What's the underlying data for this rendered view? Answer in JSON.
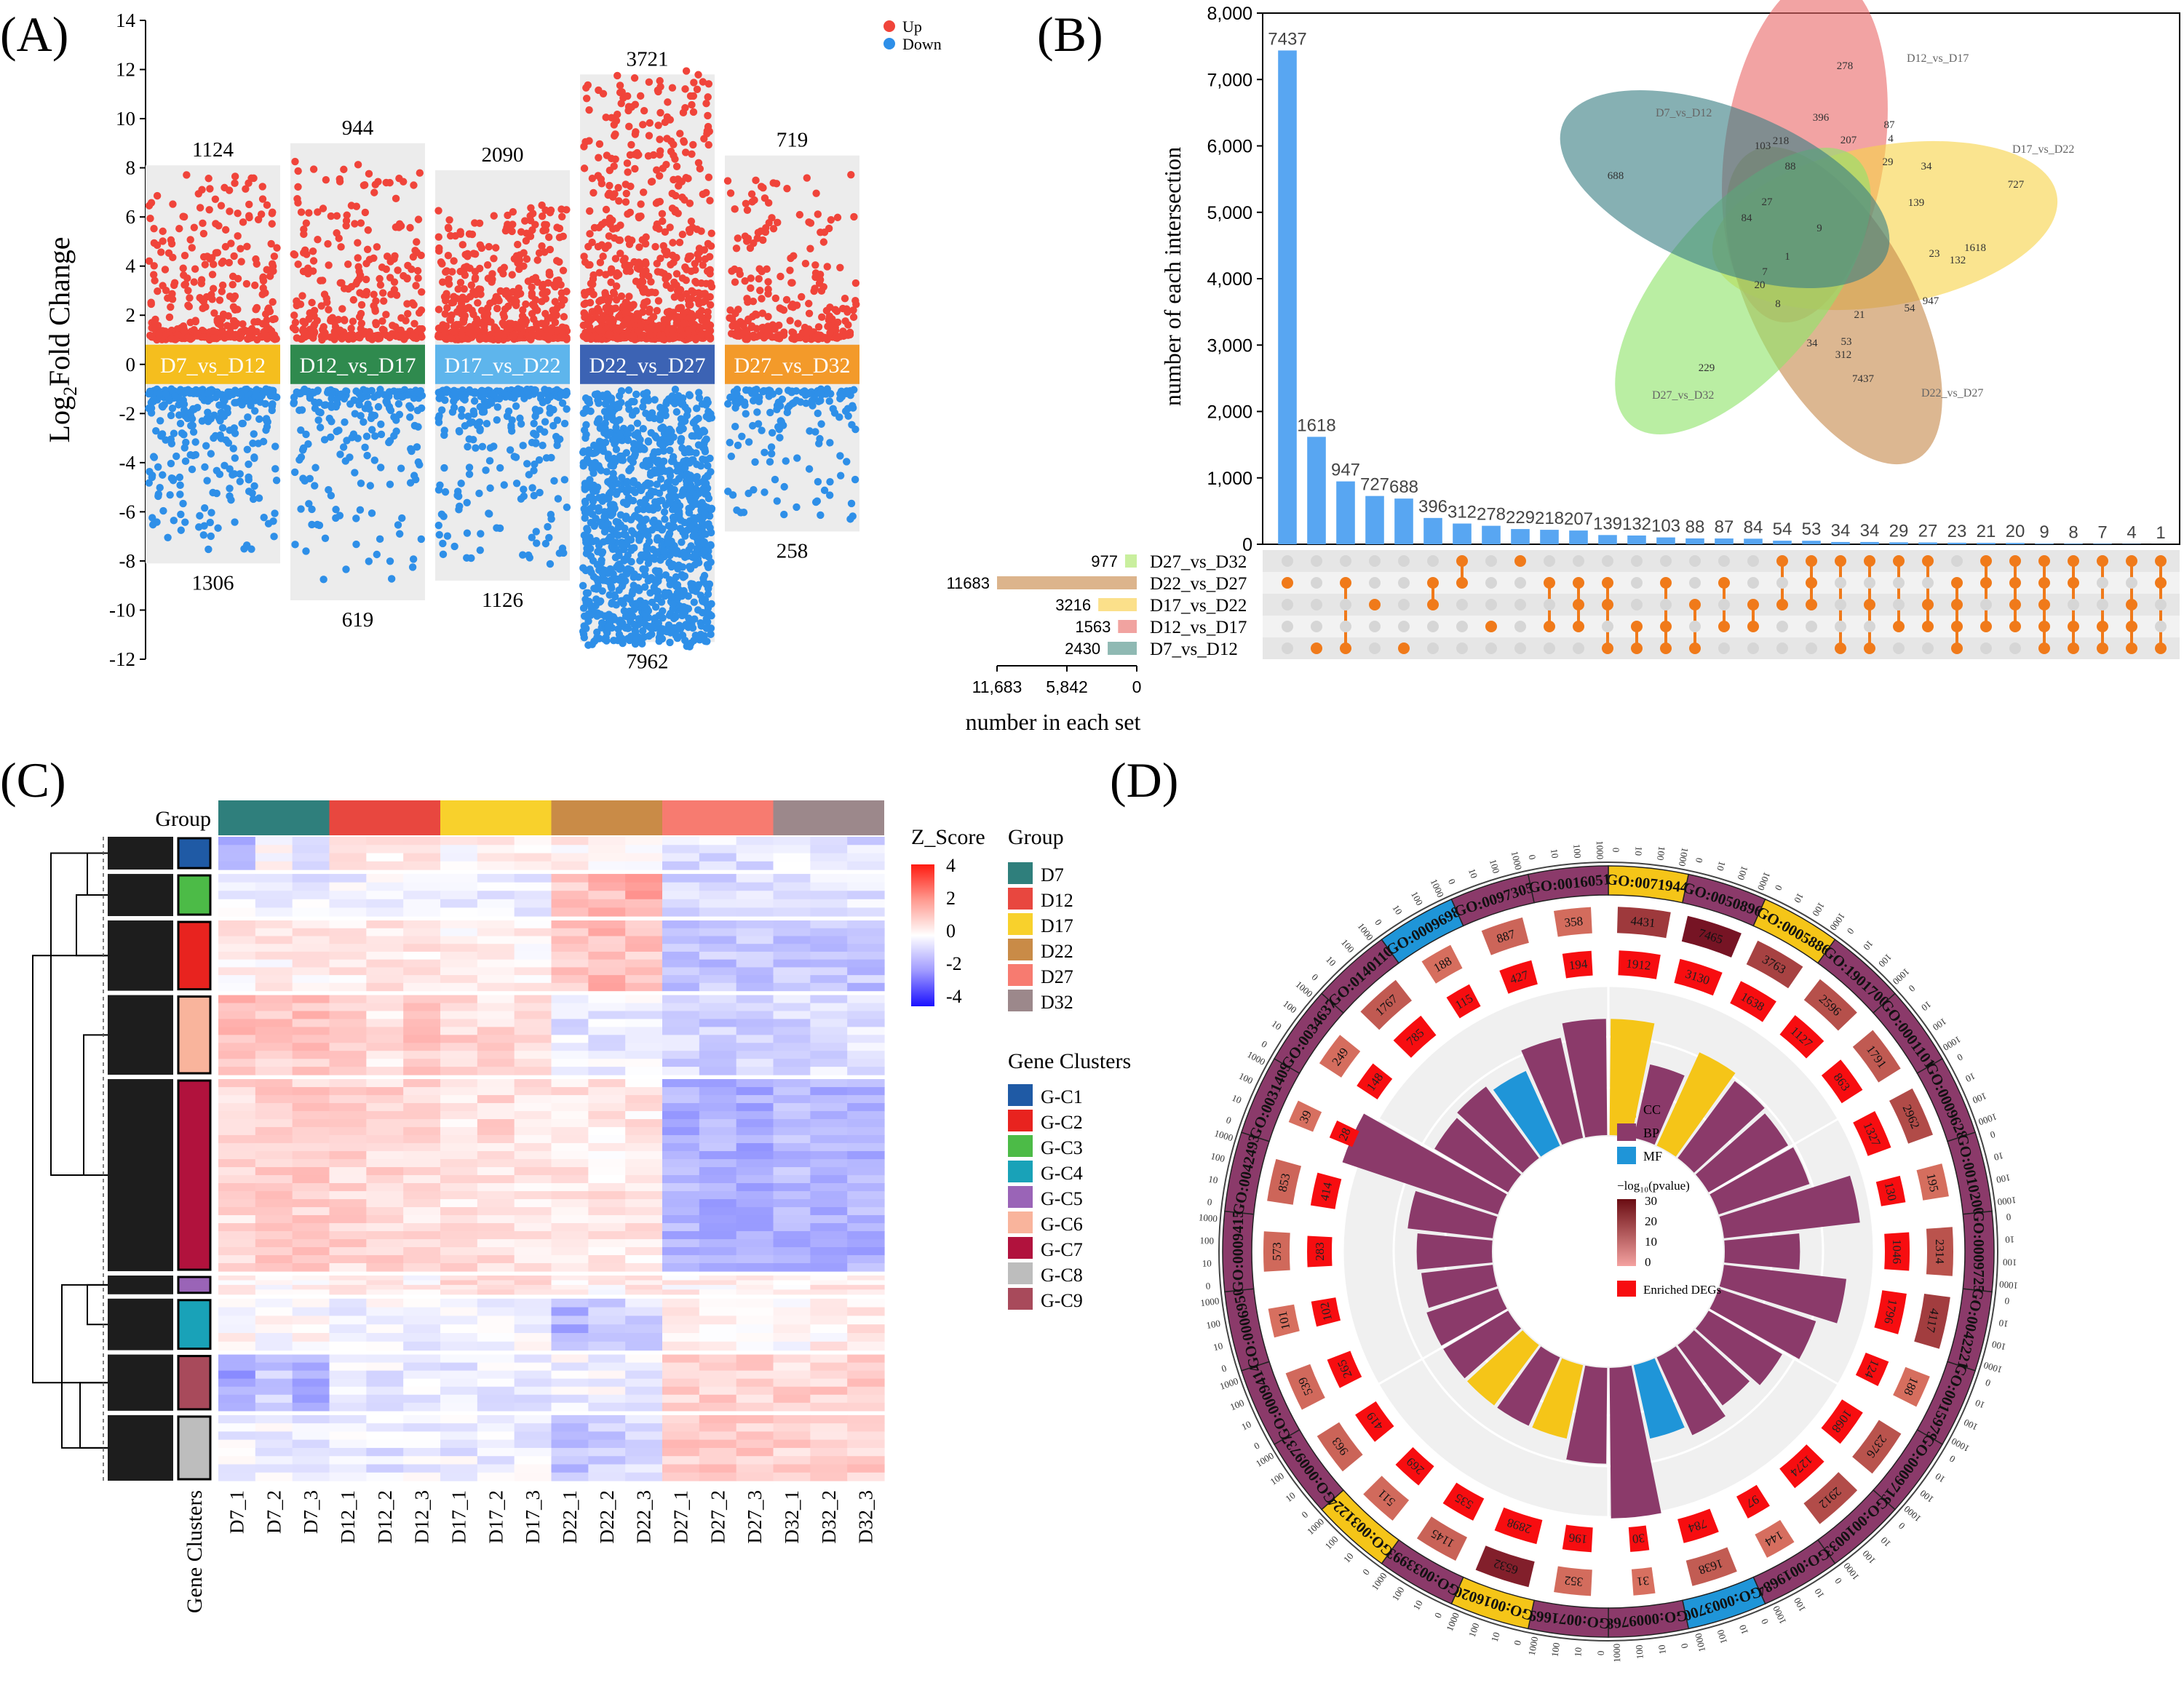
{
  "panels": {
    "A": "(A)",
    "B": "(B)",
    "C": "(C)",
    "D": "(D)"
  },
  "colors": {
    "up": "#f0443a",
    "down": "#2e8fe8",
    "bar": "#58a6f2",
    "dot_on": "#f07a1a",
    "dot_off": "#d6d6d6",
    "cc": "#f5c518",
    "bp": "#8b3a6a",
    "mf": "#1f95d8"
  },
  "chart_data": [
    {
      "id": "A",
      "type": "scatter",
      "title": "",
      "ylabel_prefix": "Log",
      "ylabel_sub": "2",
      "ylabel_suffix": "Fold Change",
      "ylim": [
        -12,
        14
      ],
      "yticks": [
        14,
        12,
        10,
        8,
        6,
        4,
        2,
        0,
        -2,
        -4,
        -6,
        -8,
        -10,
        -12
      ],
      "legend": [
        {
          "label": "Up",
          "color": "#f0443a"
        },
        {
          "label": "Down",
          "color": "#2e8fe8"
        }
      ],
      "series": [
        {
          "name": "D7_vs_D12",
          "label_color": "#f5be1e",
          "up": 1124,
          "down": 1306,
          "max": 8.1,
          "min": -8.1,
          "up_range": [
            1,
            7.6
          ],
          "down_range": [
            -1,
            -7.5
          ]
        },
        {
          "name": "D12_vs_D17",
          "label_color": "#2f8a4e",
          "up": 944,
          "down": 619,
          "max": 9.0,
          "min": -9.6,
          "up_range": [
            1,
            8.2
          ],
          "down_range": [
            -1,
            -8.8
          ]
        },
        {
          "name": "D17_vs_D22",
          "label_color": "#5eb5ec",
          "up": 2090,
          "down": 1126,
          "max": 7.9,
          "min": -8.8,
          "up_range": [
            1,
            6.3
          ],
          "down_range": [
            -1,
            -8.0
          ]
        },
        {
          "name": "D22_vs_D27",
          "label_color": "#3c63b4",
          "up": 3721,
          "down": 7962,
          "max": 11.8,
          "min": -11.3,
          "up_range": [
            1,
            11.8
          ],
          "down_range": [
            -1,
            -11.3
          ]
        },
        {
          "name": "D27_vs_D32",
          "label_color": "#f39a2a",
          "up": 719,
          "down": 258,
          "max": 8.5,
          "min": -6.8,
          "up_range": [
            1,
            7.8
          ],
          "down_range": [
            -1,
            -6.2
          ]
        }
      ]
    },
    {
      "id": "B",
      "type": "bar",
      "subtype": "upset",
      "ylabel": "number of each intersection",
      "xlabel": "number in each set",
      "ylim": [
        0,
        8000
      ],
      "yticks": [
        0,
        1000,
        2000,
        3000,
        4000,
        5000,
        6000,
        7000,
        8000
      ],
      "ytick_labels": [
        "0",
        "1,000",
        "2,000",
        "3,000",
        "4,000",
        "5,000",
        "6,000",
        "7,000",
        "8,000"
      ],
      "values": [
        7437,
        1618,
        947,
        727,
        688,
        396,
        312,
        278,
        229,
        218,
        207,
        139,
        132,
        103,
        88,
        87,
        84,
        54,
        53,
        34,
        34,
        29,
        27,
        23,
        21,
        20,
        9,
        8,
        7,
        4,
        1
      ],
      "set_order": [
        "D27_vs_D32",
        "D22_vs_D27",
        "D17_vs_D22",
        "D12_vs_D17",
        "D7_vs_D12"
      ],
      "membership": [
        [
          1
        ],
        [
          4
        ],
        [
          1,
          4
        ],
        [
          2
        ],
        [
          4
        ],
        [
          1,
          2
        ],
        [
          0,
          1
        ],
        [
          3
        ],
        [
          0
        ],
        [
          1,
          3
        ],
        [
          1,
          2,
          3
        ],
        [
          1,
          2,
          4
        ],
        [
          3,
          4
        ],
        [
          1,
          3,
          4
        ],
        [
          2,
          4
        ],
        [
          1,
          3
        ],
        [
          2,
          3
        ],
        [
          0,
          2
        ],
        [
          0,
          1,
          2
        ],
        [
          0,
          4
        ],
        [
          0,
          2,
          4
        ],
        [
          0,
          3
        ],
        [
          0,
          2,
          3
        ],
        [
          1,
          2,
          3,
          4
        ],
        [
          0,
          1,
          3
        ],
        [
          0,
          1,
          2,
          3
        ],
        [
          0,
          1,
          2,
          3,
          4
        ],
        [
          0,
          1,
          3,
          4
        ],
        [
          0,
          3,
          4
        ],
        [
          0,
          2,
          3,
          4
        ],
        [
          0,
          1,
          4
        ]
      ],
      "set_sizes": [
        {
          "name": "D27_vs_D32",
          "value": 977,
          "color": "#c9ef9e"
        },
        {
          "name": "D22_vs_D27",
          "value": 11683,
          "color": "#dcb48c"
        },
        {
          "name": "D17_vs_D22",
          "value": 3216,
          "color": "#fbe08a"
        },
        {
          "name": "D12_vs_D17",
          "value": 1563,
          "color": "#f1a3a0"
        },
        {
          "name": "D7_vs_D12",
          "value": 2430,
          "color": "#8fb9b3"
        }
      ],
      "set_axis_ticks": [
        "11,683",
        "5,842",
        "0"
      ],
      "venn": {
        "sets": [
          {
            "name": "D12_vs_D17",
            "color": "#ea6b6b"
          },
          {
            "name": "D17_vs_D22",
            "color": "#f7d34a"
          },
          {
            "name": "D22_vs_D27",
            "color": "#c78a4e"
          },
          {
            "name": "D27_vs_D32",
            "color": "#8fe36a"
          },
          {
            "name": "D7_vs_D12",
            "color": "#3b7f84"
          }
        ],
        "region_labels": [
          "278",
          "727",
          "7437",
          "229",
          "688",
          "396",
          "87",
          "4",
          "207",
          "29",
          "34",
          "139",
          "1618",
          "132",
          "23",
          "947",
          "54",
          "312",
          "53",
          "21",
          "34",
          "8",
          "20",
          "7",
          "1",
          "84",
          "27",
          "103",
          "218",
          "88",
          "9"
        ]
      }
    },
    {
      "id": "C",
      "type": "heatmap",
      "group_label": "Group",
      "cluster_label": "Gene Clusters",
      "columns": [
        "D7_1",
        "D7_2",
        "D7_3",
        "D12_1",
        "D12_2",
        "D12_3",
        "D17_1",
        "D17_2",
        "D17_3",
        "D22_1",
        "D22_2",
        "D22_3",
        "D27_1",
        "D27_2",
        "D27_3",
        "D32_1",
        "D32_2",
        "D32_3"
      ],
      "colorbar": {
        "title": "Z_Score",
        "ticks": [
          "4",
          "2",
          "0",
          "-2",
          "-4"
        ],
        "range": [
          -4,
          4
        ]
      },
      "groups": [
        {
          "name": "D7",
          "color": "#2f7f7c"
        },
        {
          "name": "D12",
          "color": "#e8473f"
        },
        {
          "name": "D17",
          "color": "#f8d12c"
        },
        {
          "name": "D22",
          "color": "#c98b47"
        },
        {
          "name": "D27",
          "color": "#f77b70"
        },
        {
          "name": "D32",
          "color": "#9c888b"
        }
      ],
      "gene_clusters_title": "Gene Clusters",
      "clusters": [
        {
          "name": "G-C1",
          "color": "#1f5aa5"
        },
        {
          "name": "G-C2",
          "color": "#e8231f"
        },
        {
          "name": "G-C3",
          "color": "#4cbb47"
        },
        {
          "name": "G-C4",
          "color": "#19a2b8"
        },
        {
          "name": "G-C5",
          "color": "#9a64b7"
        },
        {
          "name": "G-C6",
          "color": "#f9b49c"
        },
        {
          "name": "G-C7",
          "color": "#b1123d"
        },
        {
          "name": "G-C8",
          "color": "#bdbdbd"
        },
        {
          "name": "G-C9",
          "color": "#a84a5b"
        }
      ],
      "row_blocks": [
        {
          "cluster": "G-C1",
          "weight": 0.07,
          "pattern": [
            -1.2,
            0,
            -0.3,
            0.3,
            0.3,
            0.3,
            0.2,
            0.2,
            0.2,
            0.3,
            0.3,
            0.3,
            -0.5,
            -0.5,
            -0.5,
            -0.3,
            -0.3,
            -0.6
          ]
        },
        {
          "cluster": "G-C3",
          "weight": 0.09,
          "pattern": [
            -0.3,
            -0.3,
            -0.3,
            -0.2,
            -0.2,
            -0.2,
            -0.2,
            -0.2,
            -0.2,
            0.9,
            1.2,
            1.5,
            -0.6,
            -0.6,
            -0.6,
            -0.5,
            -0.5,
            -0.5
          ]
        },
        {
          "cluster": "G-C2",
          "weight": 0.15,
          "pattern": [
            0.3,
            0.3,
            0.3,
            0.4,
            0.4,
            0.4,
            0.3,
            0.3,
            0.3,
            1.0,
            1.2,
            1.0,
            -1.0,
            -1.0,
            -1.0,
            -0.9,
            -0.9,
            -1.0
          ]
        },
        {
          "cluster": "G-C6",
          "weight": 0.17,
          "pattern": [
            1.2,
            0.9,
            1.0,
            0.7,
            0.5,
            0.9,
            0.7,
            0.6,
            0.5,
            -0.4,
            -0.3,
            -0.2,
            -0.7,
            -0.8,
            -0.7,
            -0.6,
            -0.5,
            -0.5
          ]
        },
        {
          "cluster": "G-C7",
          "weight": 0.41,
          "pattern": [
            0.6,
            0.8,
            0.8,
            0.7,
            0.7,
            0.6,
            0.5,
            0.6,
            0.5,
            0.5,
            0.4,
            0.4,
            -1.3,
            -1.3,
            -1.4,
            -1.2,
            -1.2,
            -1.3
          ]
        },
        {
          "cluster": "G-C5",
          "weight": 0.04,
          "pattern": [
            0.3,
            0.2,
            0.1,
            0.2,
            0.3,
            0.2,
            0.5,
            0.8,
            0.6,
            0.2,
            0.2,
            0.3,
            0.2,
            0.3,
            0.2,
            0.2,
            0.4,
            0.3
          ]
        },
        {
          "cluster": "G-C4",
          "weight": 0.11,
          "pattern": [
            0.1,
            0.1,
            0.0,
            -0.2,
            -0.1,
            -0.2,
            -0.1,
            -0.2,
            -0.1,
            -1.3,
            -1.0,
            -0.6,
            0.2,
            0.4,
            0.3,
            0.1,
            0.2,
            0.3
          ]
        },
        {
          "cluster": "G-C9",
          "weight": 0.12,
          "pattern": [
            -1.5,
            -0.8,
            -1.3,
            -0.4,
            -0.3,
            -0.3,
            -0.3,
            -0.3,
            -0.4,
            -0.2,
            -0.2,
            -0.3,
            0.8,
            0.8,
            0.8,
            0.7,
            0.8,
            0.8
          ]
        },
        {
          "cluster": "G-C8",
          "weight": 0.14,
          "pattern": [
            -0.3,
            -0.2,
            -0.4,
            -0.4,
            -0.4,
            -0.3,
            -0.3,
            -0.3,
            -0.3,
            -1.0,
            -0.8,
            -0.5,
            0.9,
            0.9,
            0.9,
            0.8,
            0.6,
            0.8
          ]
        }
      ]
    },
    {
      "id": "D",
      "type": "bar",
      "subtype": "circular-go",
      "legend": {
        "cc": "CC",
        "bp": "BP",
        "mf": "MF",
        "pvalue_title": "−log₁₀(pvalue)",
        "pvalue_ticks": [
          "30",
          "20",
          "10",
          "0"
        ],
        "enriched": "Enriched DEGs"
      },
      "ring_ticks": [
        "0",
        "10",
        "100",
        "1000"
      ],
      "terms": [
        {
          "id": "GO:0071944",
          "cat": "cc",
          "total": 4431,
          "enriched": 1912,
          "ratio": 0.34
        },
        {
          "id": "GO:0050896",
          "cat": "bp",
          "total": 7465,
          "enriched": 3130,
          "ratio": 0.22
        },
        {
          "id": "GO:0005886",
          "cat": "cc",
          "total": 3763,
          "enriched": 1638,
          "ratio": 0.3
        },
        {
          "id": "GO:1901700",
          "cat": "bp",
          "total": 2596,
          "enriched": 1127,
          "ratio": 0.28
        },
        {
          "id": "GO:0001101",
          "cat": "bp",
          "total": 1791,
          "enriched": 863,
          "ratio": 0.27
        },
        {
          "id": "GO:0009628",
          "cat": "bp",
          "total": 2962,
          "enriched": 1327,
          "ratio": 0.28
        },
        {
          "id": "GO:0010200",
          "cat": "bp",
          "total": 195,
          "enriched": 130,
          "ratio": 0.4
        },
        {
          "id": "GO:0009725",
          "cat": "bp",
          "total": 2314,
          "enriched": 1046,
          "ratio": 0.22
        },
        {
          "id": "GO:0042221",
          "cat": "bp",
          "total": 4117,
          "enriched": 1796,
          "ratio": 0.36
        },
        {
          "id": "GO:0015979",
          "cat": "bp",
          "total": 188,
          "enriched": 124,
          "ratio": 0.3
        },
        {
          "id": "GO:0009719",
          "cat": "bp",
          "total": 2376,
          "enriched": 1068,
          "ratio": 0.25
        },
        {
          "id": "GO:0010033",
          "cat": "bp",
          "total": 2912,
          "enriched": 1274,
          "ratio": 0.22
        },
        {
          "id": "GO:0019684",
          "cat": "bp",
          "total": 144,
          "enriched": 97,
          "ratio": 0.25
        },
        {
          "id": "GO:0003700",
          "cat": "mf",
          "total": 1638,
          "enriched": 784,
          "ratio": 0.22
        },
        {
          "id": "GO:0009768",
          "cat": "bp",
          "total": 31,
          "enriched": 30,
          "ratio": 0.44
        },
        {
          "id": "GO:0071669",
          "cat": "bp",
          "total": 352,
          "enriched": 196,
          "ratio": 0.28
        },
        {
          "id": "GO:0016020",
          "cat": "cc",
          "total": 6532,
          "enriched": 2898,
          "ratio": 0.22
        },
        {
          "id": "GO:0033993",
          "cat": "bp",
          "total": 1145,
          "enriched": 535,
          "ratio": 0.22
        },
        {
          "id": "GO:0031224",
          "cat": "cc",
          "total": 511,
          "enriched": 269,
          "ratio": 0.22
        },
        {
          "id": "GO:0009737",
          "cat": "bp",
          "total": 963,
          "enriched": 419,
          "ratio": 0.22
        },
        {
          "id": "GO:0009414",
          "cat": "bp",
          "total": 539,
          "enriched": 265,
          "ratio": 0.22
        },
        {
          "id": "GO:0006950",
          "cat": "bp",
          "total": 101,
          "enriched": 102,
          "ratio": 0.21
        },
        {
          "id": "GO:0009415",
          "cat": "bp",
          "total": 573,
          "enriched": 283,
          "ratio": 0.22
        },
        {
          "id": "GO:0042493",
          "cat": "bp",
          "total": 853,
          "enriched": 414,
          "ratio": 0.25
        },
        {
          "id": "GO:0031409",
          "cat": "bp",
          "total": 39,
          "enriched": 28,
          "ratio": 0.48
        },
        {
          "id": "GO:0034637",
          "cat": "bp",
          "total": 249,
          "enriched": 148,
          "ratio": 0.25
        },
        {
          "id": "GO:0140110",
          "cat": "bp",
          "total": 1767,
          "enriched": 785,
          "ratio": 0.26
        },
        {
          "id": "GO:0009698",
          "cat": "mf",
          "total": 188,
          "enriched": 115,
          "ratio": 0.24
        },
        {
          "id": "GO:0097305",
          "cat": "bp",
          "total": 887,
          "enriched": 427,
          "ratio": 0.3
        },
        {
          "id": "GO:0016051",
          "cat": "bp",
          "total": 358,
          "enriched": 194,
          "ratio": 0.34
        }
      ],
      "label_band_ids": [
        "GO:0009698",
        "GO:0097305",
        "GO:0016051"
      ]
    }
  ]
}
